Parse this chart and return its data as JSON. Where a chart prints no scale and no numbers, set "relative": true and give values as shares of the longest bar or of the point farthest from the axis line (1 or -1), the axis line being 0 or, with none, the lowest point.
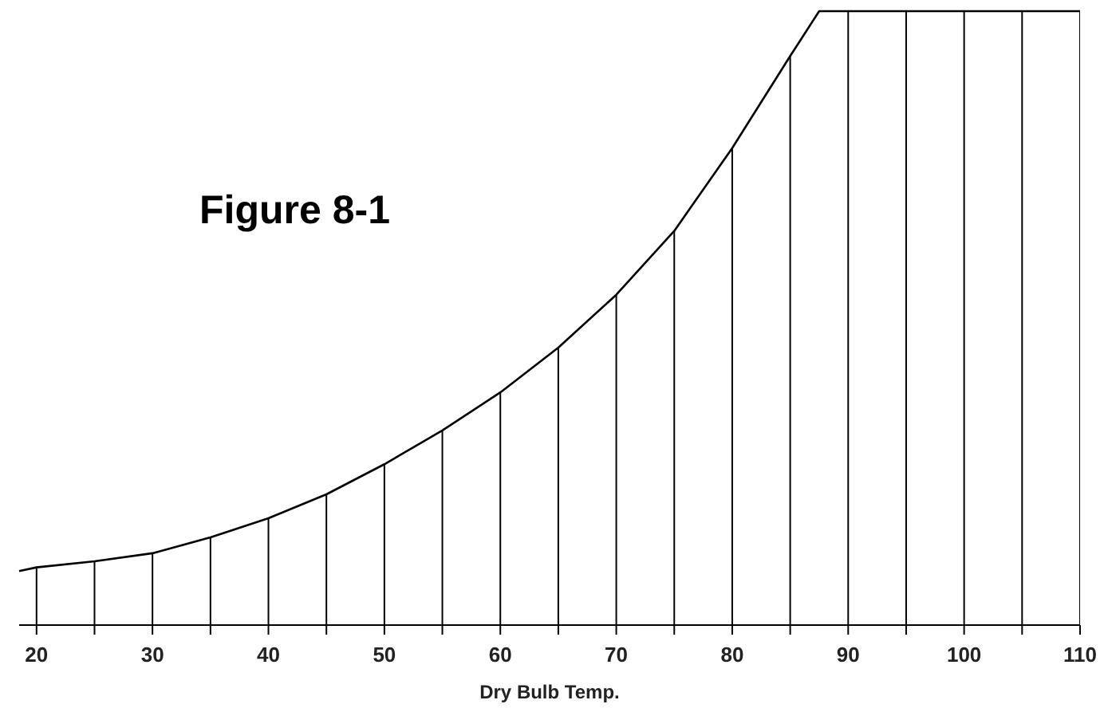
{
  "chart_data": {
    "type": "area",
    "title": "Figure 8-1",
    "xlabel": "Dry Bulb Temp.",
    "relative": true,
    "x": [
      18.5,
      20,
      25,
      30,
      35,
      40,
      45,
      50,
      55,
      60,
      65,
      70,
      75,
      80,
      85,
      87.5,
      110
    ],
    "values": [
      0.088,
      0.094,
      0.104,
      0.117,
      0.143,
      0.174,
      0.213,
      0.262,
      0.317,
      0.379,
      0.452,
      0.538,
      0.642,
      0.777,
      0.927,
      1,
      1
    ],
    "color": "#000000",
    "xlim": [
      18.5,
      110
    ],
    "xticks": [
      20,
      {
        "value": 25,
        "label": null
      },
      30,
      {
        "value": 35,
        "label": null
      },
      40,
      {
        "value": 45,
        "label": null
      },
      50,
      {
        "value": 55,
        "label": null
      },
      60,
      {
        "value": 65,
        "label": null
      },
      70,
      {
        "value": 75,
        "label": null
      },
      80,
      {
        "value": 85,
        "label": null
      },
      90,
      {
        "value": 95,
        "label": null
      },
      100,
      {
        "value": 105,
        "label": null
      },
      110
    ],
    "marker": "none",
    "line_style": "solid"
  }
}
